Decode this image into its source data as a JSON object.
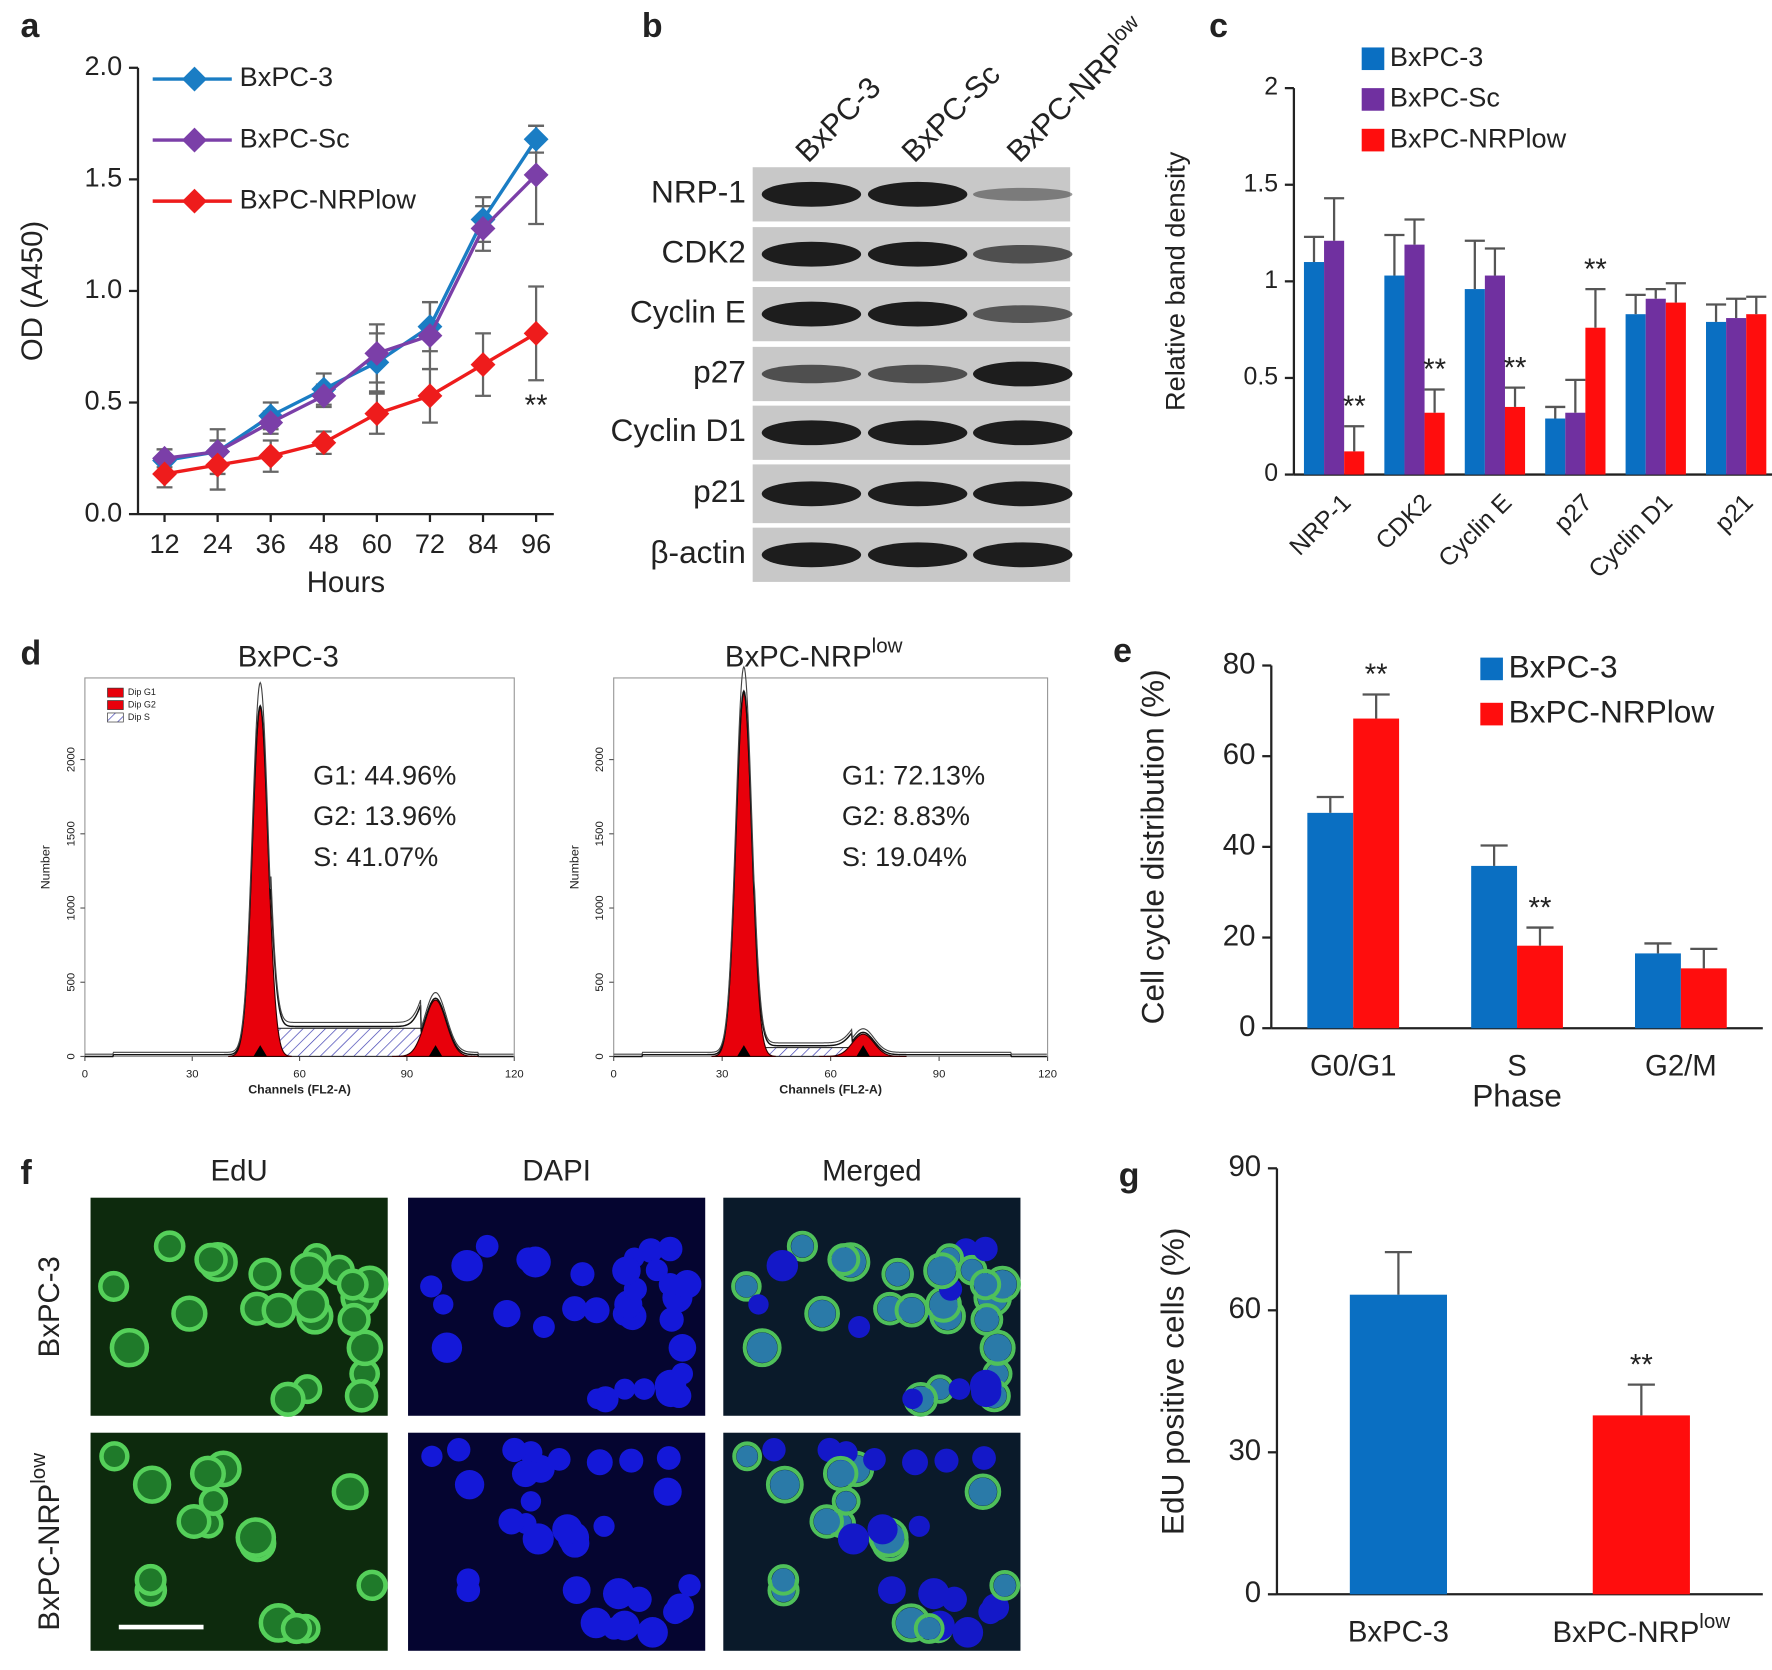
{
  "panel_labels": [
    "a",
    "b",
    "c",
    "d",
    "e",
    "f",
    "g"
  ],
  "chart_data": [
    {
      "type": "line",
      "xlabel": "Hours",
      "ylabel": "OD (A450)",
      "x": [
        12,
        24,
        36,
        48,
        60,
        72,
        84,
        96
      ],
      "xlim": [
        6,
        100
      ],
      "xticks": [
        12,
        24,
        36,
        48,
        60,
        72,
        84,
        96
      ],
      "ylim": [
        0,
        2
      ],
      "yticks": [
        {
          "value": 0,
          "label": "0.0"
        },
        0.5,
        {
          "value": 1,
          "label": "1.0"
        },
        1.5,
        {
          "value": 2,
          "label": "2.0"
        }
      ],
      "series": [
        {
          "name": "BxPC-3",
          "color": "#1a7dc4",
          "values": [
            0.24,
            0.28,
            0.44,
            0.56,
            0.68,
            0.84,
            1.32,
            1.68
          ],
          "errors": [
            0.05,
            0.1,
            0.06,
            0.07,
            0.13,
            0.11,
            0.1,
            0.06
          ]
        },
        {
          "name": "BxPC-Sc",
          "color": "#7b3fa8",
          "values": [
            0.25,
            0.28,
            0.41,
            0.53,
            0.72,
            0.8,
            1.28,
            1.52
          ],
          "errors": [
            0.04,
            0.05,
            0.05,
            0.05,
            0.13,
            0.15,
            0.1,
            0.22
          ]
        },
        {
          "name": "BxPC-NRPlow",
          "color": "#ee1c1c",
          "values": [
            0.18,
            0.22,
            0.26,
            0.32,
            0.45,
            0.53,
            0.67,
            0.81
          ],
          "errors": [
            0.06,
            0.11,
            0.07,
            0.05,
            0.09,
            0.12,
            0.14,
            0.21
          ]
        }
      ],
      "annotations": [
        {
          "text": "**",
          "series": 2,
          "index": 7
        }
      ]
    },
    {
      "type": "bar",
      "ylabel": "Relative band density",
      "categories": [
        "NRP-1",
        "CDK2",
        "Cyclin E",
        "p27",
        "Cyclin D1",
        "p21"
      ],
      "ylim": [
        0,
        2
      ],
      "yticks": [
        0,
        0.5,
        1,
        1.5,
        2
      ],
      "series": [
        {
          "name": "BxPC-3",
          "color": "#0a6fc2",
          "values": [
            1.1,
            1.03,
            0.96,
            0.29,
            0.83,
            0.79
          ],
          "errors": [
            0.13,
            0.21,
            0.25,
            0.06,
            0.1,
            0.09
          ]
        },
        {
          "name": "BxPC-Sc",
          "color": "#7030a0",
          "values": [
            1.21,
            1.19,
            1.03,
            0.32,
            0.91,
            0.81
          ],
          "errors": [
            0.22,
            0.13,
            0.14,
            0.17,
            0.05,
            0.1
          ]
        },
        {
          "name": "BxPC-NRPlow",
          "color": "#ff0d0d",
          "values": [
            0.12,
            0.32,
            0.35,
            0.76,
            0.89,
            0.83
          ],
          "errors": [
            0.13,
            0.12,
            0.1,
            0.2,
            0.1,
            0.09
          ]
        }
      ],
      "annotations": [
        {
          "text": "**",
          "series": 2,
          "index": 0
        },
        {
          "text": "**",
          "series": 2,
          "index": 1
        },
        {
          "text": "**",
          "series": 2,
          "index": 2
        },
        {
          "text": "**",
          "series": 2,
          "index": 3
        }
      ]
    },
    {
      "type": "bar",
      "xlabel": "Phase",
      "ylabel": "Cell cycle distribution (%)",
      "categories": [
        "G0/G1",
        "S",
        "G2/M"
      ],
      "ylim": [
        0,
        80
      ],
      "yticks": [
        0,
        20,
        40,
        60,
        80
      ],
      "series": [
        {
          "name": "BxPC-3",
          "color": "#0a6fc2",
          "values": [
            47.5,
            35.8,
            16.5
          ],
          "errors": [
            3.5,
            4.5,
            2.2
          ]
        },
        {
          "name": "BxPC-NRPlow",
          "color": "#ff0d0d",
          "values": [
            68.3,
            18.2,
            13.2
          ],
          "errors": [
            5.3,
            4,
            4.3
          ]
        }
      ],
      "annotations": [
        {
          "text": "**",
          "series": 1,
          "index": 0
        },
        {
          "text": "**",
          "series": 1,
          "index": 1
        }
      ]
    },
    {
      "type": "bar",
      "ylabel": "EdU positive cells (%)",
      "categories": [
        "BxPC-3",
        {
          "base": "BxPC-NRP",
          "sup": "low"
        }
      ],
      "ylim": [
        0,
        90
      ],
      "yticks": [
        0,
        30,
        60,
        90
      ],
      "series": [
        {
          "colors": [
            "#0a6fc2",
            "#ff0d0d"
          ],
          "values": [
            63.3,
            37.8
          ],
          "errors": [
            9,
            6.5
          ]
        }
      ],
      "annotations": [
        {
          "text": "**",
          "series": 0,
          "index": 1
        }
      ]
    },
    {
      "type": "flow",
      "title": "BxPC-3",
      "xlabel": "Channels (FL2-A)",
      "ylabel": "Number",
      "xlim": [
        0,
        120
      ],
      "xticks": [
        0,
        30,
        60,
        90,
        120
      ],
      "ylim": [
        0,
        2550
      ],
      "yticks": [
        0,
        500,
        1000,
        1500,
        2000
      ],
      "legend": [
        "Dip G1",
        "Dip G2",
        "Dip S"
      ],
      "stats": [
        "G1: 44.96%",
        "G2: 13.96%",
        "S: 41.07%"
      ]
    },
    {
      "type": "flow",
      "title": {
        "base": "BxPC-NRP",
        "sup": "low"
      },
      "xlabel": "Channels (FL2-A)",
      "ylabel": "Number",
      "xlim": [
        0,
        120
      ],
      "xticks": [
        0,
        30,
        60,
        90,
        120
      ],
      "ylim": [
        0,
        2550
      ],
      "yticks": [
        0,
        500,
        1000,
        1500,
        2000
      ],
      "stats": [
        "G1: 72.13%",
        "G2: 8.83%",
        "S: 19.04%"
      ]
    }
  ],
  "blot": {
    "lanes": [
      "BxPC-3",
      "BxPC-Sc",
      {
        "base": "BxPC-NRP",
        "sup": "low"
      }
    ],
    "rows": [
      "NRP-1",
      "CDK2",
      "Cyclin E",
      "p27",
      "Cyclin D1",
      "p21",
      "β-actin"
    ]
  },
  "microscopy": {
    "columns": [
      "EdU",
      "DAPI",
      "Merged"
    ],
    "rows": [
      "BxPC-3",
      {
        "base": "BxPC-NRP",
        "sup": "low"
      }
    ]
  }
}
